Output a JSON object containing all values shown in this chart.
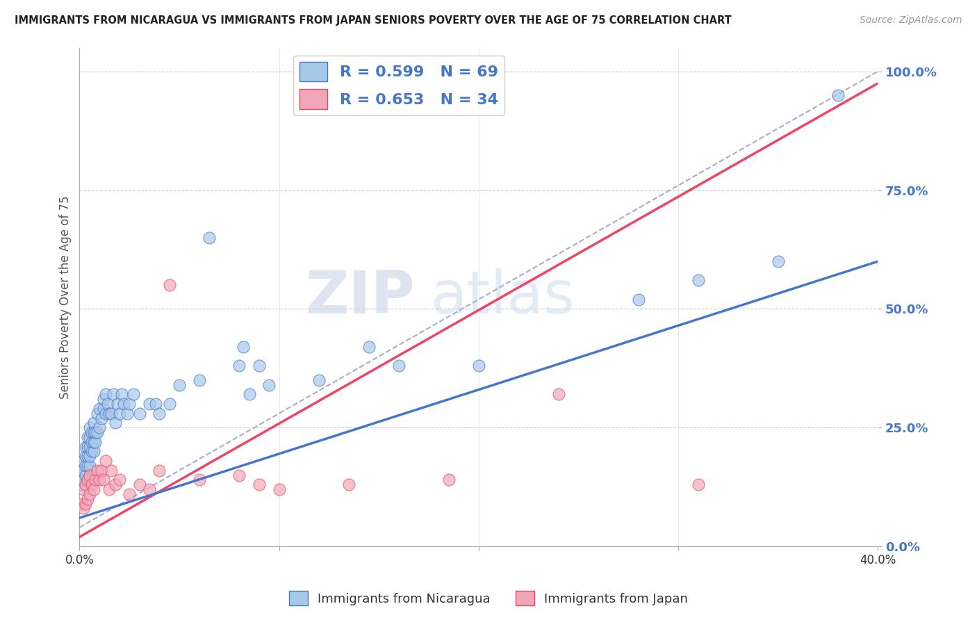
{
  "title": "IMMIGRANTS FROM NICARAGUA VS IMMIGRANTS FROM JAPAN SENIORS POVERTY OVER THE AGE OF 75 CORRELATION CHART",
  "source": "Source: ZipAtlas.com",
  "ylabel": "Seniors Poverty Over the Age of 75",
  "y_ticks": [
    "0.0%",
    "25.0%",
    "50.0%",
    "75.0%",
    "100.0%"
  ],
  "legend_blue_label": "R = 0.599   N = 69",
  "legend_pink_label": "R = 0.653   N = 34",
  "blue_color": "#a8c8e8",
  "pink_color": "#f0a8b8",
  "blue_line_color": "#4477cc",
  "pink_line_color": "#ee4466",
  "watermark_zip": "ZIP",
  "watermark_atlas": "atlas",
  "blue_line": {
    "x0": 0.0,
    "y0": 0.06,
    "x1": 0.4,
    "y1": 0.6
  },
  "pink_line": {
    "x0": 0.0,
    "y0": 0.02,
    "x1": 0.4,
    "y1": 0.975
  },
  "dash_line": {
    "x0": 0.0,
    "y0": 0.04,
    "x1": 0.4,
    "y1": 1.0
  },
  "scatter_blue": {
    "x": [
      0.001,
      0.001,
      0.002,
      0.002,
      0.002,
      0.003,
      0.003,
      0.003,
      0.003,
      0.004,
      0.004,
      0.004,
      0.004,
      0.005,
      0.005,
      0.005,
      0.005,
      0.005,
      0.006,
      0.006,
      0.006,
      0.007,
      0.007,
      0.007,
      0.007,
      0.008,
      0.008,
      0.009,
      0.009,
      0.01,
      0.01,
      0.011,
      0.012,
      0.012,
      0.013,
      0.013,
      0.014,
      0.015,
      0.016,
      0.017,
      0.018,
      0.019,
      0.02,
      0.021,
      0.022,
      0.024,
      0.025,
      0.027,
      0.03,
      0.035,
      0.038,
      0.04,
      0.045,
      0.05,
      0.06,
      0.065,
      0.08,
      0.082,
      0.085,
      0.09,
      0.095,
      0.12,
      0.145,
      0.16,
      0.2,
      0.28,
      0.31,
      0.35,
      0.38
    ],
    "y": [
      0.13,
      0.15,
      0.14,
      0.16,
      0.18,
      0.15,
      0.17,
      0.19,
      0.21,
      0.17,
      0.19,
      0.21,
      0.23,
      0.17,
      0.19,
      0.21,
      0.23,
      0.25,
      0.2,
      0.22,
      0.24,
      0.2,
      0.22,
      0.24,
      0.26,
      0.22,
      0.24,
      0.24,
      0.28,
      0.25,
      0.29,
      0.27,
      0.29,
      0.31,
      0.28,
      0.32,
      0.3,
      0.28,
      0.28,
      0.32,
      0.26,
      0.3,
      0.28,
      0.32,
      0.3,
      0.28,
      0.3,
      0.32,
      0.28,
      0.3,
      0.3,
      0.28,
      0.3,
      0.34,
      0.35,
      0.65,
      0.38,
      0.42,
      0.32,
      0.38,
      0.34,
      0.35,
      0.42,
      0.38,
      0.38,
      0.52,
      0.56,
      0.6,
      0.95
    ]
  },
  "scatter_pink": {
    "x": [
      0.001,
      0.002,
      0.002,
      0.003,
      0.003,
      0.004,
      0.004,
      0.005,
      0.005,
      0.006,
      0.007,
      0.008,
      0.009,
      0.01,
      0.011,
      0.012,
      0.013,
      0.015,
      0.016,
      0.018,
      0.02,
      0.025,
      0.03,
      0.035,
      0.04,
      0.045,
      0.06,
      0.08,
      0.09,
      0.1,
      0.135,
      0.185,
      0.24,
      0.31
    ],
    "y": [
      0.09,
      0.08,
      0.12,
      0.09,
      0.13,
      0.1,
      0.14,
      0.11,
      0.15,
      0.13,
      0.12,
      0.14,
      0.16,
      0.14,
      0.16,
      0.14,
      0.18,
      0.12,
      0.16,
      0.13,
      0.14,
      0.11,
      0.13,
      0.12,
      0.16,
      0.55,
      0.14,
      0.15,
      0.13,
      0.12,
      0.13,
      0.14,
      0.32,
      0.13
    ]
  },
  "xlim": [
    0.0,
    0.4
  ],
  "ylim": [
    0.0,
    1.05
  ],
  "bottom_labels": [
    "Immigrants from Nicaragua",
    "Immigrants from Japan"
  ],
  "fig_bg": "#ffffff",
  "plot_bg": "#ffffff"
}
